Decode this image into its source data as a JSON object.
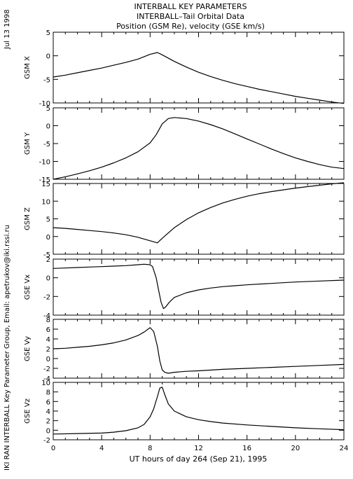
{
  "header": {
    "title_line1": "INTERBALL KEY PARAMETERS",
    "title_line2": "INTERBALL–Tail Orbital Data",
    "title_line3": "Position (GSM Re), velocity (GSE km/s)",
    "date_stamp": "Jul 13 1998",
    "credit": "IKI RAN INTERBALL Key Parameter Group, Email: apetrukov@iki.rssi.ru"
  },
  "x_axis": {
    "label": "UT hours of day 264 (Sep 21), 1995",
    "ticks": [
      0,
      4,
      8,
      12,
      16,
      20,
      24
    ],
    "range": [
      0,
      24
    ]
  },
  "chart_data": [
    {
      "type": "line",
      "ylabel": "GSM X",
      "ylim": [
        -10,
        5
      ],
      "yticks": [
        -10,
        -5,
        0,
        5
      ],
      "x": [
        0,
        1,
        2,
        3,
        4,
        5,
        6,
        7,
        8,
        8.6,
        9,
        10,
        11,
        12,
        13,
        14,
        15,
        16,
        17,
        18,
        19,
        20,
        21,
        22,
        23,
        24
      ],
      "y": [
        -4.5,
        -4.1,
        -3.6,
        -3.1,
        -2.6,
        -2.0,
        -1.4,
        -0.7,
        0.3,
        0.7,
        0.2,
        -1.2,
        -2.4,
        -3.5,
        -4.4,
        -5.2,
        -5.9,
        -6.5,
        -7.1,
        -7.6,
        -8.1,
        -8.6,
        -9.0,
        -9.4,
        -9.8,
        -10.1
      ]
    },
    {
      "type": "line",
      "ylabel": "GSM Y",
      "ylim": [
        -15,
        5
      ],
      "yticks": [
        -15,
        -10,
        -5,
        0,
        5
      ],
      "x": [
        0,
        1,
        2,
        3,
        4,
        5,
        6,
        7,
        8,
        8.5,
        9,
        9.5,
        10,
        11,
        12,
        13,
        14,
        15,
        16,
        17,
        18,
        19,
        20,
        21,
        22,
        23,
        24
      ],
      "y": [
        -15,
        -14.3,
        -13.5,
        -12.6,
        -11.6,
        -10.4,
        -9.0,
        -7.3,
        -4.8,
        -2.5,
        0.5,
        2.0,
        2.3,
        2.0,
        1.3,
        0.3,
        -0.9,
        -2.3,
        -3.7,
        -5.1,
        -6.5,
        -7.8,
        -9.0,
        -10.0,
        -10.9,
        -11.6,
        -12.0
      ]
    },
    {
      "type": "line",
      "ylabel": "GSM Z",
      "ylim": [
        -5,
        15
      ],
      "yticks": [
        -5,
        0,
        5,
        10,
        15
      ],
      "x": [
        0,
        1,
        2,
        3,
        4,
        5,
        6,
        7,
        8,
        8.6,
        9,
        10,
        11,
        12,
        13,
        14,
        15,
        16,
        17,
        18,
        19,
        20,
        21,
        22,
        23,
        24
      ],
      "y": [
        2.5,
        2.3,
        2.0,
        1.7,
        1.4,
        1.0,
        0.5,
        -0.2,
        -1.2,
        -1.8,
        -0.5,
        2.5,
        4.8,
        6.7,
        8.2,
        9.5,
        10.5,
        11.4,
        12.1,
        12.7,
        13.2,
        13.7,
        14.1,
        14.5,
        14.9,
        15.2
      ]
    },
    {
      "type": "line",
      "ylabel": "GSE Vx",
      "ylim": [
        -4,
        2
      ],
      "yticks": [
        -4,
        -2,
        0,
        2
      ],
      "x": [
        0,
        1,
        2,
        3,
        4,
        5,
        6,
        7,
        7.5,
        8,
        8.2,
        8.5,
        8.7,
        8.9,
        9.1,
        9.3,
        9.6,
        10,
        11,
        12,
        13,
        14,
        15,
        16,
        18,
        20,
        22,
        24
      ],
      "y": [
        1.0,
        1.05,
        1.1,
        1.15,
        1.2,
        1.25,
        1.3,
        1.4,
        1.45,
        1.4,
        1.2,
        0.0,
        -1.3,
        -2.6,
        -3.3,
        -3.1,
        -2.6,
        -2.1,
        -1.6,
        -1.3,
        -1.1,
        -0.95,
        -0.85,
        -0.75,
        -0.6,
        -0.45,
        -0.35,
        -0.25
      ]
    },
    {
      "type": "line",
      "ylabel": "GSE Vy",
      "ylim": [
        -4,
        8
      ],
      "yticks": [
        -4,
        -2,
        0,
        2,
        4,
        6,
        8
      ],
      "x": [
        0,
        1,
        2,
        3,
        4,
        5,
        6,
        7,
        7.5,
        8,
        8.3,
        8.6,
        8.8,
        9.0,
        9.2,
        9.5,
        10,
        11,
        12,
        14,
        16,
        18,
        20,
        22,
        24
      ],
      "y": [
        2.0,
        2.1,
        2.3,
        2.5,
        2.8,
        3.2,
        3.8,
        4.7,
        5.4,
        6.3,
        5.5,
        2.5,
        -0.5,
        -2.3,
        -2.8,
        -3.0,
        -2.8,
        -2.6,
        -2.5,
        -2.2,
        -2.0,
        -1.8,
        -1.6,
        -1.4,
        -1.2
      ]
    },
    {
      "type": "line",
      "ylabel": "GSE Vz",
      "ylim": [
        -2,
        10
      ],
      "yticks": [
        -2,
        0,
        2,
        4,
        6,
        8,
        10
      ],
      "x": [
        0,
        2,
        4,
        5,
        6,
        7,
        7.5,
        8,
        8.3,
        8.6,
        8.8,
        9.0,
        9.2,
        9.5,
        10,
        11,
        12,
        13,
        14,
        16,
        18,
        20,
        22,
        24
      ],
      "y": [
        -0.8,
        -0.7,
        -0.6,
        -0.4,
        -0.1,
        0.5,
        1.2,
        2.8,
        4.5,
        7.0,
        8.8,
        9.0,
        7.5,
        5.5,
        4.0,
        2.8,
        2.2,
        1.8,
        1.5,
        1.1,
        0.8,
        0.5,
        0.3,
        0.1
      ]
    }
  ]
}
